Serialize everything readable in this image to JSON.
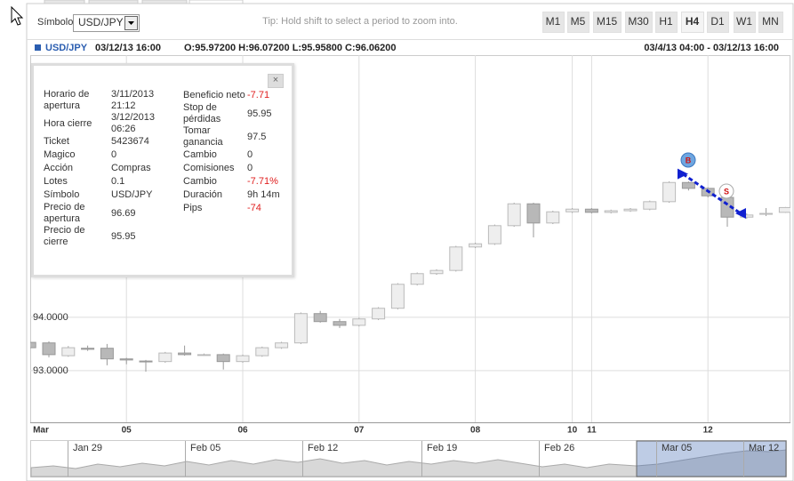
{
  "toolbar": {
    "symbol_label": "Símbolo",
    "symbol": "USD/JPY",
    "tip": "Tip: Hold shift to select a period to zoom into.",
    "timeframes": [
      "M1",
      "M5",
      "M15",
      "M30",
      "H1",
      "H4",
      "D1",
      "W1",
      "MN"
    ],
    "active_timeframe": "H4"
  },
  "info": {
    "symbol": "USD/JPY",
    "time": "03/12/13 16:00",
    "ohlc": "O:95.97200 H:96.07200 L:95.95800 C:96.06200",
    "range": "03/4/13 04:00 - 03/12/13 16:00"
  },
  "popup": {
    "left": [
      {
        "label": "Horario de apertura",
        "value": "3/11/2013 21:12"
      },
      {
        "label": "Hora cierre",
        "value": "3/12/2013 06:26"
      },
      {
        "label": "Ticket",
        "value": "5423674"
      },
      {
        "label": "Magico",
        "value": "0"
      },
      {
        "label": "Acción",
        "value": "Compras"
      },
      {
        "label": "Lotes",
        "value": "0.1"
      },
      {
        "label": "Símbolo",
        "value": "USD/JPY"
      },
      {
        "label": "Precio de apertura",
        "value": "96.69"
      },
      {
        "label": "Precio de cierre",
        "value": "95.95"
      }
    ],
    "right": [
      {
        "label": "Beneficio neto",
        "value": "-7.71",
        "color": "#e02020"
      },
      {
        "label": "Stop de pérdidas",
        "value": "95.95"
      },
      {
        "label": "Tomar ganancia",
        "value": "97.5"
      },
      {
        "label": "Cambio",
        "value": "0"
      },
      {
        "label": "Comisiones",
        "value": "0"
      },
      {
        "label": "Cambio",
        "value": "-7.71%",
        "color": "#e02020"
      },
      {
        "label": "Duración",
        "value": "9h 14m"
      },
      {
        "label": "Pips",
        "value": "-74",
        "color": "#e02020"
      }
    ],
    "close": "×"
  },
  "chart_data": {
    "type": "candlestick",
    "categories": [
      "Mar",
      null,
      null,
      null,
      null,
      "05",
      null,
      null,
      null,
      null,
      null,
      "06",
      null,
      null,
      null,
      null,
      null,
      "07",
      null,
      null,
      null,
      null,
      null,
      "08",
      null,
      null,
      null,
      null,
      "10",
      "11",
      null,
      null,
      null,
      null,
      null,
      "12",
      null,
      null,
      null,
      null
    ],
    "open": [
      93.53,
      93.52,
      93.28,
      93.42,
      93.42,
      93.22,
      93.18,
      93.17,
      93.33,
      93.3,
      93.3,
      93.17,
      93.28,
      93.43,
      93.52,
      94.07,
      93.92,
      93.85,
      93.97,
      94.17,
      94.62,
      94.82,
      94.88,
      95.32,
      95.38,
      95.72,
      96.13,
      95.77,
      95.98,
      96.03,
      95.97,
      96.0,
      96.03,
      96.17,
      96.53,
      96.42,
      96.25,
      95.88,
      95.95,
      95.97
    ],
    "high": [
      93.57,
      93.55,
      93.46,
      93.47,
      93.5,
      93.24,
      93.2,
      93.35,
      93.47,
      93.32,
      93.32,
      93.3,
      93.45,
      93.54,
      94.09,
      94.12,
      93.97,
      93.99,
      94.19,
      94.64,
      94.84,
      94.9,
      95.34,
      95.4,
      95.74,
      96.15,
      96.15,
      96.0,
      96.05,
      96.05,
      96.02,
      96.05,
      96.19,
      96.55,
      96.55,
      96.44,
      96.27,
      95.95,
      96.05,
      96.07
    ],
    "low": [
      93.4,
      93.25,
      93.26,
      93.37,
      93.1,
      93.12,
      92.98,
      93.15,
      93.28,
      93.28,
      93.02,
      93.15,
      93.26,
      93.41,
      93.5,
      93.9,
      93.8,
      93.83,
      93.95,
      94.15,
      94.6,
      94.8,
      94.86,
      95.3,
      95.36,
      95.7,
      95.5,
      95.75,
      95.96,
      95.95,
      95.95,
      95.98,
      96.01,
      96.15,
      96.38,
      96.25,
      95.7,
      95.85,
      95.9,
      95.96
    ],
    "close": [
      93.43,
      93.3,
      93.43,
      93.4,
      93.22,
      93.2,
      93.17,
      93.33,
      93.3,
      93.3,
      93.17,
      93.28,
      93.43,
      93.52,
      94.07,
      93.92,
      93.85,
      93.97,
      94.17,
      94.62,
      94.82,
      94.88,
      95.32,
      95.38,
      95.72,
      96.13,
      95.77,
      95.98,
      96.03,
      95.97,
      96.0,
      96.03,
      96.17,
      96.53,
      96.42,
      96.28,
      95.88,
      95.92,
      95.95,
      96.06
    ],
    "ylim": [
      92.03,
      98.92
    ],
    "yticks": [
      {
        "value": 93,
        "label": "93.0000"
      },
      {
        "value": 94,
        "label": "94.0000"
      }
    ],
    "grid": true,
    "markers": [
      "B",
      "S"
    ]
  },
  "navigator": {
    "labels": [
      "Jan 29",
      "Feb 05",
      "Feb 12",
      "Feb 19",
      "Feb 26",
      "Mar 05",
      "Mar 12"
    ]
  }
}
